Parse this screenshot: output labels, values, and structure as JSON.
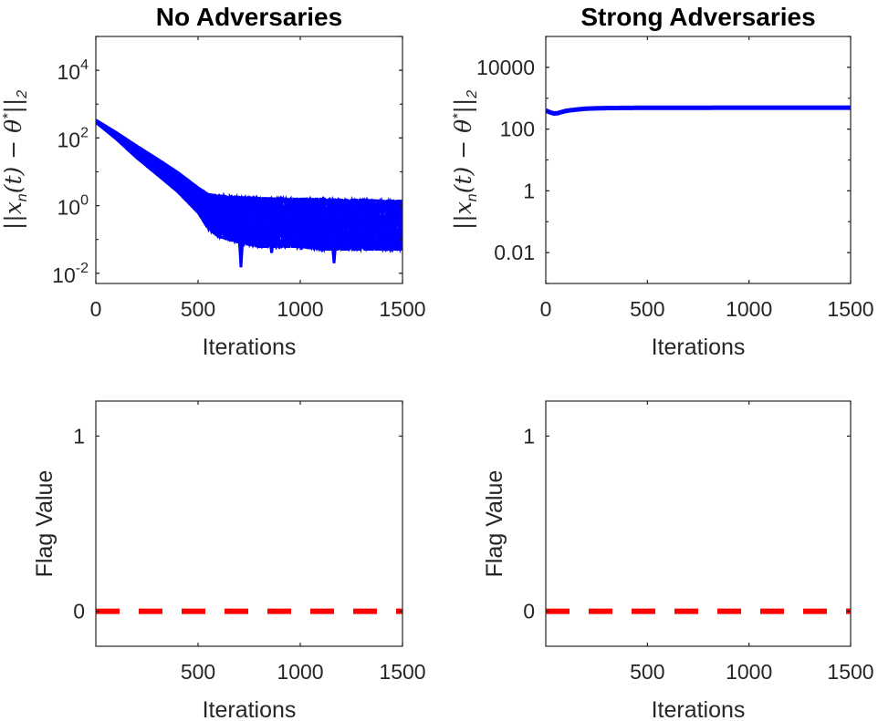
{
  "chart_data": [
    {
      "id": "no-adversaries-error",
      "type": "line",
      "title": "No Adversaries",
      "xlabel": "Iterations",
      "ylabel": "||x_n(t) − θ*||_2",
      "ylabel_text": "||x",
      "ylabel_sub": "n",
      "ylabel_mid": "(t) − θ",
      "ylabel_sup": "*",
      "ylabel_end": "||",
      "ylabel_sub2": "2",
      "yscale": "log",
      "xlim": [
        0,
        1500
      ],
      "ylim": [
        0.005,
        100000
      ],
      "xticks": [
        0,
        500,
        1000,
        1500
      ],
      "xtick_labels": [
        "0",
        "500",
        "1000",
        "1500"
      ],
      "yticks": [
        0.01,
        1,
        100,
        10000
      ],
      "ytick_labels": [
        {
          "base": "10",
          "exp": "-2"
        },
        {
          "base": "10",
          "exp": "0"
        },
        {
          "base": "10",
          "exp": "2"
        },
        {
          "base": "10",
          "exp": "4"
        }
      ],
      "series_color": "#0000ff",
      "series_description": "many agents; error decays from ~300 to ~1 by iteration 550, then fluctuates between ~0.02 and ~1.5",
      "band": {
        "x": [
          0,
          100,
          200,
          300,
          400,
          500,
          550,
          600,
          700,
          800,
          900,
          1000,
          1100,
          1200,
          1300,
          1400,
          1500
        ],
        "upper": [
          350,
          150,
          60,
          25,
          10,
          3.5,
          2.2,
          2.0,
          1.8,
          1.7,
          1.6,
          1.6,
          1.6,
          1.5,
          1.5,
          1.4,
          1.4
        ],
        "lower": [
          280,
          90,
          25,
          8,
          2.5,
          0.6,
          0.2,
          0.12,
          0.08,
          0.06,
          0.06,
          0.06,
          0.05,
          0.05,
          0.05,
          0.05,
          0.05
        ]
      },
      "dips": [
        {
          "x": 710,
          "y": 0.015
        },
        {
          "x": 860,
          "y": 0.04
        },
        {
          "x": 1005,
          "y": 0.05
        },
        {
          "x": 1165,
          "y": 0.02
        },
        {
          "x": 1370,
          "y": 0.05
        }
      ]
    },
    {
      "id": "strong-adversaries-error",
      "type": "line",
      "title": "Strong Adversaries",
      "xlabel": "Iterations",
      "ylabel": "||x_n(t) − θ*||_2",
      "ylabel_text": "||x",
      "ylabel_sub": "n",
      "ylabel_mid": "(t) − θ",
      "ylabel_sup": "*",
      "ylabel_end": "||",
      "ylabel_sub2": "2",
      "yscale": "log",
      "xlim": [
        0,
        1500
      ],
      "ylim": [
        0.001,
        100000
      ],
      "xticks": [
        0,
        500,
        1000,
        1500
      ],
      "xtick_labels": [
        "0",
        "500",
        "1000",
        "1500"
      ],
      "yticks": [
        0.01,
        1,
        100,
        10000
      ],
      "ytick_labels": [
        "0.01",
        "1",
        "100",
        "10000"
      ],
      "series_color": "#0000ff",
      "x": [
        0,
        20,
        40,
        60,
        80,
        100,
        150,
        200,
        300,
        500,
        1000,
        1500
      ],
      "y": [
        400,
        350,
        320,
        330,
        360,
        390,
        430,
        460,
        480,
        490,
        495,
        495
      ]
    },
    {
      "id": "no-adversaries-flag",
      "type": "line",
      "title": "",
      "xlabel": "Iterations",
      "ylabel": "Flag Value",
      "xlim": [
        0,
        1500
      ],
      "ylim": [
        -0.2,
        1.2
      ],
      "xticks": [
        500,
        1000,
        1500
      ],
      "xtick_labels": [
        "500",
        "1000",
        "1500"
      ],
      "yticks": [
        0,
        1
      ],
      "ytick_labels": [
        "0",
        "1"
      ],
      "series_color": "#ff0000",
      "line_style": "dashed",
      "x": [
        0,
        1500
      ],
      "y": [
        0,
        0
      ]
    },
    {
      "id": "strong-adversaries-flag",
      "type": "line",
      "title": "",
      "xlabel": "Iterations",
      "ylabel": "Flag Value",
      "xlim": [
        0,
        1500
      ],
      "ylim": [
        -0.2,
        1.2
      ],
      "xticks": [
        500,
        1000,
        1500
      ],
      "xtick_labels": [
        "500",
        "1000",
        "1500"
      ],
      "yticks": [
        0,
        1
      ],
      "ytick_labels": [
        "0",
        "1"
      ],
      "series_color": "#ff0000",
      "line_style": "dashed",
      "x": [
        0,
        1500
      ],
      "y": [
        0,
        0
      ]
    }
  ]
}
